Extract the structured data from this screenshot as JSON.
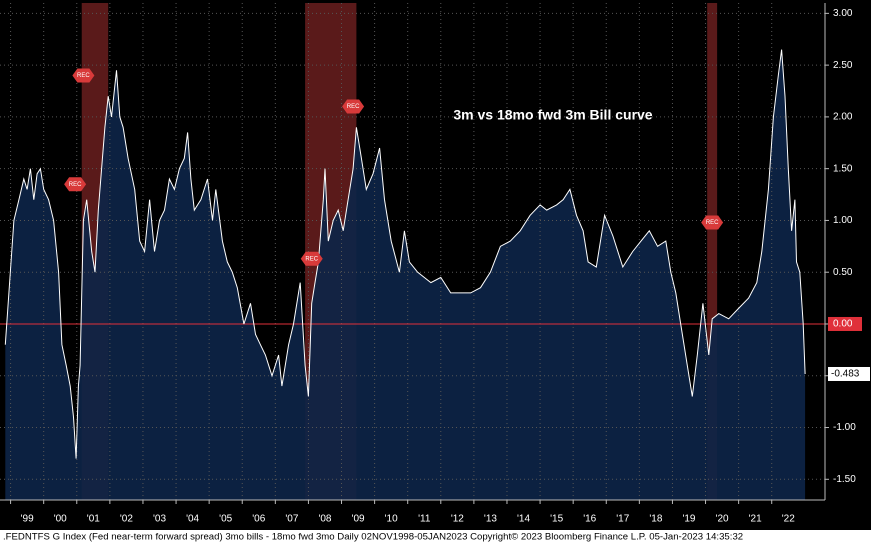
{
  "chart_data": {
    "type": "area",
    "title": "3m vs 18mo fwd 3m Bill curve",
    "footer": ".FEDNTFS G Index (Fed near-term forward spread) 3mo bills - 18mo fwd 3mo  Daily 02NOV1998-05JAN2023 Copyright© 2023 Bloomberg Finance L.P. 05-Jan-2023 14:35:32",
    "xlim": [
      1998.68,
      2023.61
    ],
    "ylim": [
      -1.7,
      3.1
    ],
    "xticks": [
      {
        "value": 1999,
        "label": "'99"
      },
      {
        "value": 2000,
        "label": "'00"
      },
      {
        "value": 2001,
        "label": "'01"
      },
      {
        "value": 2002,
        "label": "'02"
      },
      {
        "value": 2003,
        "label": "'03"
      },
      {
        "value": 2004,
        "label": "'04"
      },
      {
        "value": 2005,
        "label": "'05"
      },
      {
        "value": 2006,
        "label": "'06"
      },
      {
        "value": 2007,
        "label": "'07"
      },
      {
        "value": 2008,
        "label": "'08"
      },
      {
        "value": 2009,
        "label": "'09"
      },
      {
        "value": 2010,
        "label": "'10"
      },
      {
        "value": 2011,
        "label": "'11"
      },
      {
        "value": 2012,
        "label": "'12"
      },
      {
        "value": 2013,
        "label": "'13"
      },
      {
        "value": 2014,
        "label": "'14"
      },
      {
        "value": 2015,
        "label": "'15"
      },
      {
        "value": 2016,
        "label": "'16"
      },
      {
        "value": 2017,
        "label": "'17"
      },
      {
        "value": 2018,
        "label": "'18"
      },
      {
        "value": 2019,
        "label": "'19"
      },
      {
        "value": 2020,
        "label": "'20"
      },
      {
        "value": 2021,
        "label": "'21"
      },
      {
        "value": 2022,
        "label": "'22"
      }
    ],
    "yticks": [
      {
        "value": -1.5,
        "label": "-1.50"
      },
      {
        "value": -1,
        "label": "-1.00"
      },
      {
        "value": -0.5,
        "label": "-0.50"
      },
      {
        "value": 0,
        "label": "0.00"
      },
      {
        "value": 0.5,
        "label": "0.50"
      },
      {
        "value": 1,
        "label": "1.00"
      },
      {
        "value": 1.5,
        "label": "1.50"
      },
      {
        "value": 2,
        "label": "2.00"
      },
      {
        "value": 2.5,
        "label": "2.50"
      },
      {
        "value": 3,
        "label": "3.00"
      }
    ],
    "grid": true,
    "zero_line_color": "#e0303a",
    "recessions": [
      [
        2001.15,
        2001.95
      ],
      [
        2007.9,
        2009.45
      ],
      [
        2020.05,
        2020.35
      ]
    ],
    "annotations": [
      {
        "text": "REC",
        "x": 2001.2,
        "y": 2.4
      },
      {
        "text": "REC",
        "x": 2000.95,
        "y": 1.35
      },
      {
        "text": "REC",
        "x": 2008.1,
        "y": 0.63
      },
      {
        "text": "REC",
        "x": 2009.35,
        "y": 2.1
      },
      {
        "text": "REC",
        "x": 2020.2,
        "y": 0.98
      }
    ],
    "series": [
      {
        "name": ".FEDNTFS G Index",
        "color": "#ffffff",
        "fill": "#0d2447",
        "x": [
          1998.84,
          1998.95,
          1999.1,
          1999.25,
          1999.4,
          1999.5,
          1999.6,
          1999.7,
          1999.8,
          1999.9,
          2000.0,
          2000.15,
          2000.3,
          2000.45,
          2000.55,
          2000.68,
          2000.8,
          2000.9,
          2000.98,
          2001.05,
          2001.1,
          2001.2,
          2001.3,
          2001.45,
          2001.55,
          2001.65,
          2001.75,
          2001.85,
          2001.95,
          2002.05,
          2002.2,
          2002.3,
          2002.4,
          2002.55,
          2002.75,
          2002.9,
          2003.05,
          2003.2,
          2003.35,
          2003.5,
          2003.65,
          2003.8,
          2003.95,
          2004.1,
          2004.25,
          2004.35,
          2004.45,
          2004.55,
          2004.75,
          2004.95,
          2005.1,
          2005.2,
          2005.3,
          2005.4,
          2005.55,
          2005.7,
          2005.85,
          2006.05,
          2006.25,
          2006.4,
          2006.55,
          2006.7,
          2006.9,
          2007.1,
          2007.2,
          2007.4,
          2007.55,
          2007.75,
          2007.9,
          2008.0,
          2008.1,
          2008.2,
          2008.3,
          2008.45,
          2008.5,
          2008.6,
          2008.75,
          2008.9,
          2009.05,
          2009.2,
          2009.35,
          2009.45,
          2009.6,
          2009.75,
          2009.95,
          2010.15,
          2010.3,
          2010.5,
          2010.75,
          2010.9,
          2011.05,
          2011.3,
          2011.5,
          2011.7,
          2012.0,
          2012.3,
          2012.6,
          2012.9,
          2013.2,
          2013.5,
          2013.8,
          2014.1,
          2014.4,
          2014.7,
          2015.0,
          2015.2,
          2015.5,
          2015.7,
          2015.9,
          2016.1,
          2016.3,
          2016.45,
          2016.7,
          2016.95,
          2017.2,
          2017.5,
          2017.8,
          2018.05,
          2018.3,
          2018.55,
          2018.8,
          2018.95,
          2019.1,
          2019.25,
          2019.45,
          2019.6,
          2019.75,
          2019.92,
          2020.1,
          2020.2,
          2020.4,
          2020.7,
          2021.0,
          2021.3,
          2021.55,
          2021.7,
          2021.9,
          2022.05,
          2022.2,
          2022.3,
          2022.4,
          2022.5,
          2022.6,
          2022.7,
          2022.75,
          2022.85,
          2022.95,
          2023.01
        ],
        "values": [
          -0.2,
          0.3,
          1.0,
          1.2,
          1.4,
          1.3,
          1.5,
          1.2,
          1.45,
          1.5,
          1.3,
          1.2,
          1.0,
          0.5,
          -0.2,
          -0.4,
          -0.6,
          -0.9,
          -1.3,
          -0.6,
          -0.4,
          1.0,
          1.2,
          0.7,
          0.5,
          1.1,
          1.5,
          1.9,
          2.2,
          2.0,
          2.45,
          2.0,
          1.9,
          1.6,
          1.3,
          0.8,
          0.7,
          1.2,
          0.7,
          1.0,
          1.1,
          1.4,
          1.3,
          1.5,
          1.6,
          1.85,
          1.4,
          1.1,
          1.2,
          1.4,
          1.0,
          1.3,
          1.05,
          0.8,
          0.6,
          0.5,
          0.35,
          0.0,
          0.2,
          -0.1,
          -0.2,
          -0.3,
          -0.5,
          -0.3,
          -0.6,
          -0.2,
          0.0,
          0.4,
          -0.4,
          -0.7,
          0.2,
          0.4,
          0.6,
          1.2,
          1.5,
          0.8,
          1.0,
          1.1,
          0.9,
          1.2,
          1.5,
          1.9,
          1.6,
          1.3,
          1.45,
          1.7,
          1.2,
          0.8,
          0.5,
          0.9,
          0.6,
          0.5,
          0.45,
          0.4,
          0.45,
          0.3,
          0.3,
          0.3,
          0.35,
          0.5,
          0.75,
          0.8,
          0.9,
          1.05,
          1.15,
          1.1,
          1.15,
          1.2,
          1.3,
          1.05,
          0.9,
          0.6,
          0.55,
          1.05,
          0.85,
          0.55,
          0.7,
          0.8,
          0.9,
          0.75,
          0.8,
          0.5,
          0.3,
          0.0,
          -0.4,
          -0.7,
          -0.3,
          0.2,
          -0.3,
          0.05,
          0.1,
          0.05,
          0.15,
          0.25,
          0.4,
          0.7,
          1.3,
          2.0,
          2.4,
          2.65,
          2.2,
          1.5,
          0.9,
          1.2,
          0.6,
          0.5,
          0.0,
          -0.483
        ]
      }
    ]
  }
}
